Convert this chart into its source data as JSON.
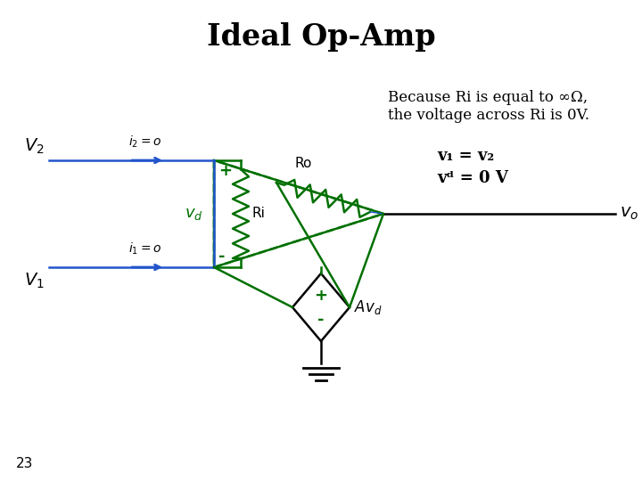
{
  "title": "Ideal Op-Amp",
  "title_fontsize": 24,
  "title_fontweight": "bold",
  "bg_color": "#ffffff",
  "text_color": "#000000",
  "green_color": "#007000",
  "blue_color": "#2255CC",
  "annotation_text1": "Because Ri is equal to ∞Ω,",
  "annotation_text2": "the voltage across Ri is 0V.",
  "eq1": "v₁ = v₂",
  "eq2": "vᵈ = 0 V",
  "page_number": "23"
}
